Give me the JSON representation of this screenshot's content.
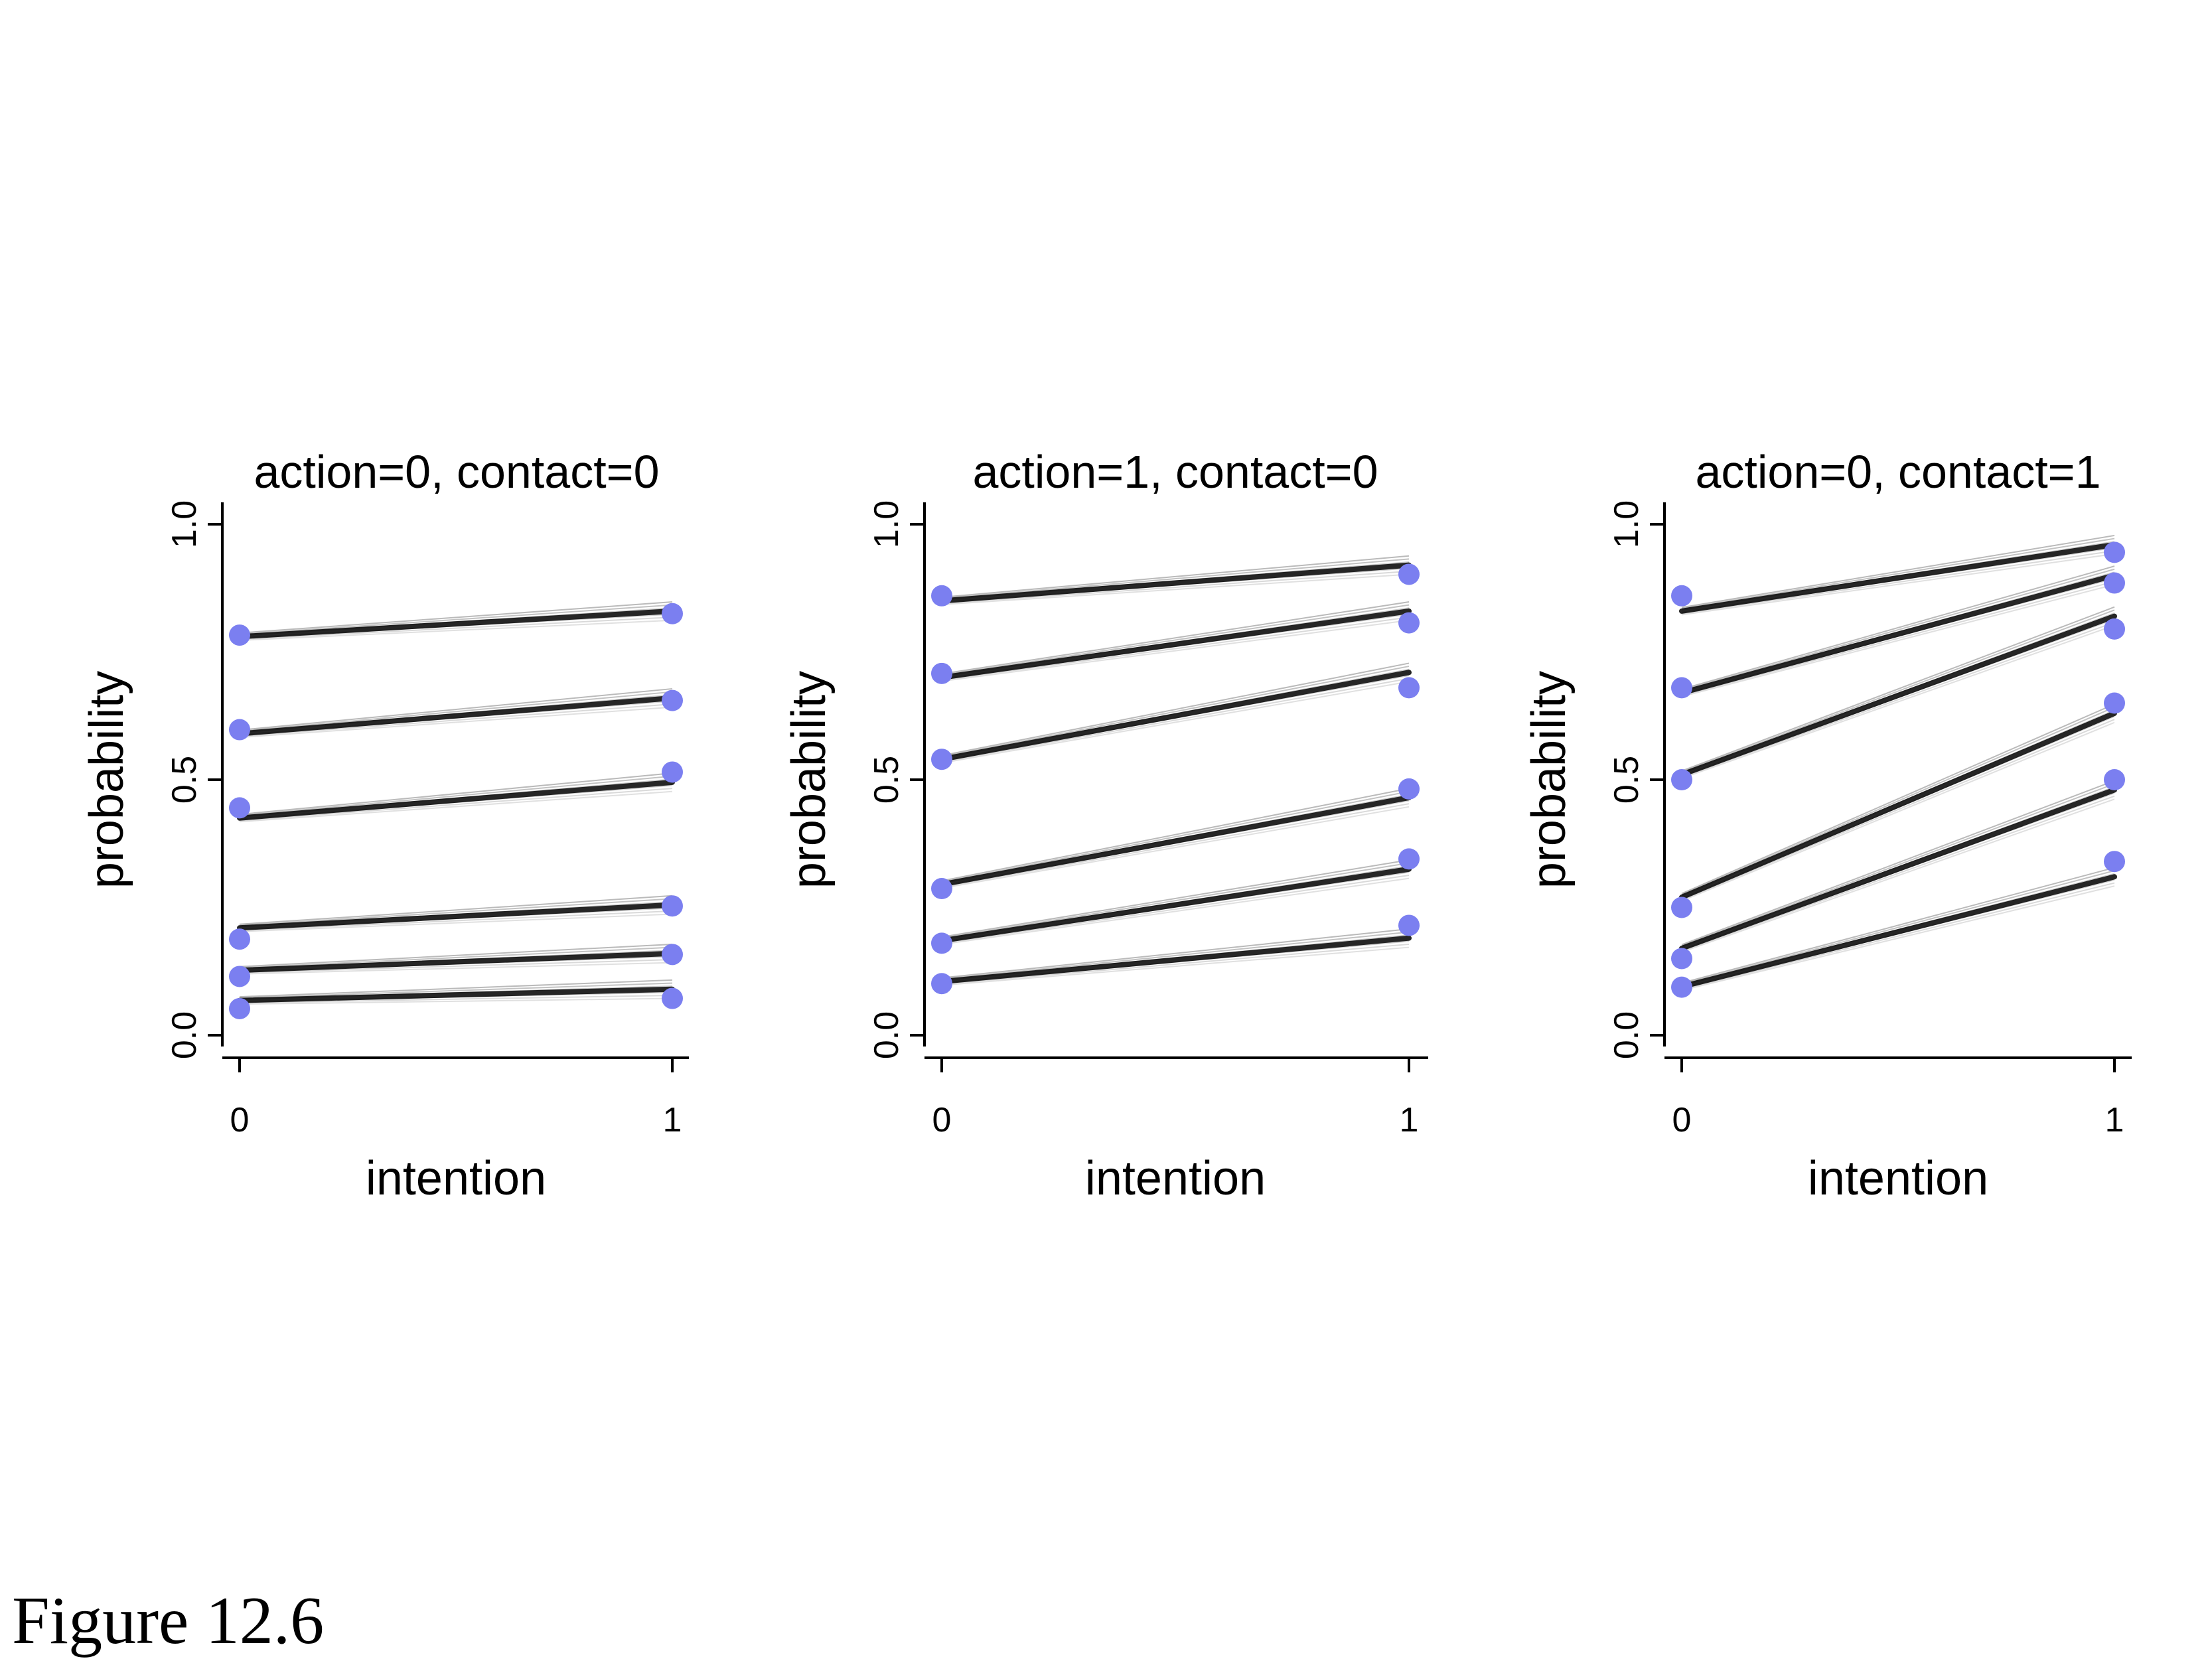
{
  "caption": "Figure 12.6",
  "colors": {
    "points": "#7b7ff0",
    "lines": "#000000"
  },
  "chart_data": [
    {
      "type": "line",
      "title": "action=0, contact=0",
      "xlabel": "intention",
      "ylabel": "probability",
      "x": [
        0,
        1
      ],
      "x_ticks": [
        "0",
        "1"
      ],
      "y_ticks": [
        "0.0",
        "0.5",
        "1.0"
      ],
      "ylim": [
        0,
        1
      ],
      "grid": false,
      "cumulative_lines": [
        {
          "values": [
            0.068,
            0.09
          ]
        },
        {
          "values": [
            0.127,
            0.16
          ]
        },
        {
          "values": [
            0.21,
            0.255
          ]
        },
        {
          "values": [
            0.425,
            0.495
          ]
        },
        {
          "values": [
            0.59,
            0.66
          ]
        },
        {
          "values": [
            0.78,
            0.83
          ]
        }
      ],
      "observed_points": [
        {
          "values": [
            0.052,
            0.072
          ]
        },
        {
          "values": [
            0.115,
            0.158
          ]
        },
        {
          "values": [
            0.188,
            0.253
          ]
        },
        {
          "values": [
            0.445,
            0.515
          ]
        },
        {
          "values": [
            0.598,
            0.655
          ]
        },
        {
          "values": [
            0.783,
            0.825
          ]
        }
      ]
    },
    {
      "type": "line",
      "title": "action=1, contact=0",
      "xlabel": "intention",
      "ylabel": "probability",
      "x": [
        0,
        1
      ],
      "x_ticks": [
        "0",
        "1"
      ],
      "y_ticks": [
        "0.0",
        "0.5",
        "1.0"
      ],
      "ylim": [
        0,
        1
      ],
      "grid": false,
      "cumulative_lines": [
        {
          "values": [
            0.105,
            0.19
          ]
        },
        {
          "values": [
            0.185,
            0.325
          ]
        },
        {
          "values": [
            0.295,
            0.465
          ]
        },
        {
          "values": [
            0.54,
            0.71
          ]
        },
        {
          "values": [
            0.7,
            0.83
          ]
        },
        {
          "values": [
            0.85,
            0.92
          ]
        }
      ],
      "observed_points": [
        {
          "values": [
            0.101,
            0.215
          ]
        },
        {
          "values": [
            0.18,
            0.345
          ]
        },
        {
          "values": [
            0.287,
            0.482
          ]
        },
        {
          "values": [
            0.54,
            0.68
          ]
        },
        {
          "values": [
            0.708,
            0.807
          ]
        },
        {
          "values": [
            0.86,
            0.902
          ]
        }
      ]
    },
    {
      "type": "line",
      "title": "action=0, contact=1",
      "xlabel": "intention",
      "ylabel": "probability",
      "x": [
        0,
        1
      ],
      "x_ticks": [
        "0",
        "1"
      ],
      "y_ticks": [
        "0.0",
        "0.5",
        "1.0"
      ],
      "ylim": [
        0,
        1
      ],
      "grid": false,
      "cumulative_lines": [
        {
          "values": [
            0.095,
            0.31
          ]
        },
        {
          "values": [
            0.17,
            0.48
          ]
        },
        {
          "values": [
            0.27,
            0.63
          ]
        },
        {
          "values": [
            0.51,
            0.82
          ]
        },
        {
          "values": [
            0.67,
            0.9
          ]
        },
        {
          "values": [
            0.83,
            0.96
          ]
        }
      ],
      "observed_points": [
        {
          "values": [
            0.094,
            0.34
          ]
        },
        {
          "values": [
            0.15,
            0.5
          ]
        },
        {
          "values": [
            0.25,
            0.65
          ]
        },
        {
          "values": [
            0.5,
            0.795
          ]
        },
        {
          "values": [
            0.68,
            0.885
          ]
        },
        {
          "values": [
            0.86,
            0.945
          ]
        }
      ]
    }
  ]
}
